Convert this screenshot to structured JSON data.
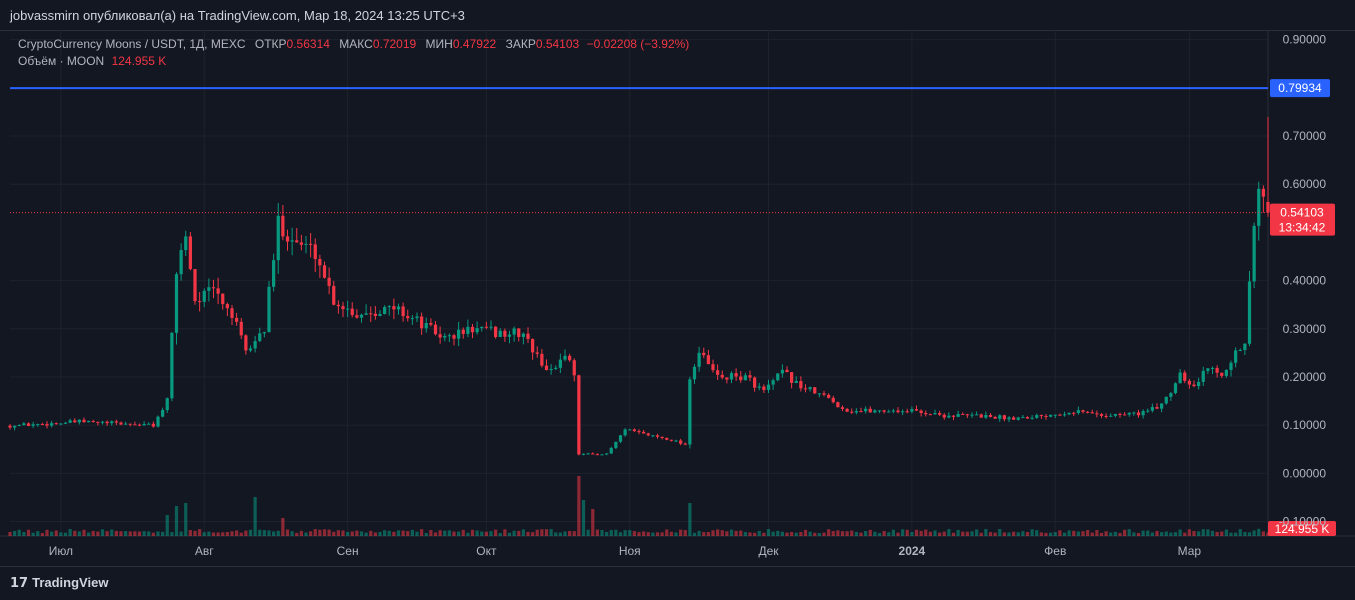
{
  "header": {
    "published": "jobvassmirn опубликовал(а) на TradingView.com, Мар 18, 2024 13:25 UTC+3"
  },
  "legend": {
    "symbol": "CryptoCurrency Moons / USDT, 1Д, MEXC",
    "open_label": "ОТКР",
    "open": "0.56314",
    "high_label": "МАКС",
    "high": "0.72019",
    "low_label": "МИН",
    "low": "0.47922",
    "close_label": "ЗАКР",
    "close": "0.54103",
    "change": "−0.02208 (−3.92%)",
    "volume_label": "Объём · MOON",
    "volume": "124.955 K"
  },
  "footer": {
    "logo_mark": "17",
    "logo_text": "TradingView"
  },
  "colors": {
    "background": "#131722",
    "up": "#089981",
    "down": "#f23645",
    "hline": "#2962ff",
    "grid": "#1e222d"
  },
  "chart_data": {
    "type": "candlestick",
    "y_ticks": [
      "0.90000",
      "0.70000",
      "0.60000",
      "0.40000",
      "0.30000",
      "0.20000",
      "0.10000",
      "0.00000",
      "-0.10000"
    ],
    "y_tick_values": [
      0.9,
      0.7,
      0.6,
      0.4,
      0.3,
      0.2,
      0.1,
      0.0,
      -0.1
    ],
    "ylim": [
      -0.13,
      0.92
    ],
    "x_labels": [
      "Июл",
      "Авг",
      "Сен",
      "Окт",
      "Ноя",
      "Дек",
      "2024",
      "Фев",
      "Мар"
    ],
    "x_label_dates": [
      "2023-07-01",
      "2023-08-01",
      "2023-09-01",
      "2023-10-01",
      "2023-11-01",
      "2023-12-01",
      "2024-01-01",
      "2024-02-01",
      "2024-03-01"
    ],
    "date_range": [
      "2023-06-20",
      "2024-03-18"
    ],
    "horizontal_line": {
      "value": 0.79934,
      "label": "0.79934"
    },
    "last_price": {
      "value": 0.54103,
      "label": "0.54103",
      "countdown": "13:34:42"
    },
    "last_volume_label": "124.955 K",
    "price_path": [
      [
        "2023-06-20",
        0.099
      ],
      [
        "2023-06-28",
        0.103
      ],
      [
        "2023-07-05",
        0.107
      ],
      [
        "2023-07-12",
        0.104
      ],
      [
        "2023-07-18",
        0.101
      ],
      [
        "2023-07-21",
        0.1
      ],
      [
        "2023-07-24",
        0.15
      ],
      [
        "2023-07-26",
        0.42
      ],
      [
        "2023-07-28",
        0.5
      ],
      [
        "2023-07-30",
        0.36
      ],
      [
        "2023-08-03",
        0.38
      ],
      [
        "2023-08-07",
        0.33
      ],
      [
        "2023-08-10",
        0.25
      ],
      [
        "2023-08-14",
        0.3
      ],
      [
        "2023-08-17",
        0.52
      ],
      [
        "2023-08-21",
        0.48
      ],
      [
        "2023-08-25",
        0.46
      ],
      [
        "2023-08-29",
        0.36
      ],
      [
        "2023-09-03",
        0.33
      ],
      [
        "2023-09-07",
        0.34
      ],
      [
        "2023-09-12",
        0.34
      ],
      [
        "2023-09-17",
        0.31
      ],
      [
        "2023-09-22",
        0.28
      ],
      [
        "2023-09-28",
        0.3
      ],
      [
        "2023-10-04",
        0.29
      ],
      [
        "2023-10-09",
        0.29
      ],
      [
        "2023-10-12",
        0.24
      ],
      [
        "2023-10-15",
        0.21
      ],
      [
        "2023-10-18",
        0.25
      ],
      [
        "2023-10-20",
        0.21
      ],
      [
        "2023-10-21",
        0.04
      ],
      [
        "2023-10-27",
        0.04
      ],
      [
        "2023-10-31",
        0.09
      ],
      [
        "2023-11-05",
        0.08
      ],
      [
        "2023-11-10",
        0.07
      ],
      [
        "2023-11-13",
        0.06
      ],
      [
        "2023-11-14",
        0.2
      ],
      [
        "2023-11-16",
        0.25
      ],
      [
        "2023-11-20",
        0.2
      ],
      [
        "2023-11-26",
        0.2
      ],
      [
        "2023-11-30",
        0.17
      ],
      [
        "2023-12-04",
        0.21
      ],
      [
        "2023-12-08",
        0.18
      ],
      [
        "2023-12-13",
        0.16
      ],
      [
        "2023-12-18",
        0.13
      ],
      [
        "2023-12-25",
        0.13
      ],
      [
        "2024-01-01",
        0.13
      ],
      [
        "2024-01-08",
        0.12
      ],
      [
        "2024-01-15",
        0.12
      ],
      [
        "2024-01-22",
        0.115
      ],
      [
        "2024-01-29",
        0.12
      ],
      [
        "2024-02-05",
        0.13
      ],
      [
        "2024-02-12",
        0.12
      ],
      [
        "2024-02-19",
        0.125
      ],
      [
        "2024-02-23",
        0.135
      ],
      [
        "2024-02-26",
        0.17
      ],
      [
        "2024-02-28",
        0.21
      ],
      [
        "2024-03-02",
        0.18
      ],
      [
        "2024-03-05",
        0.22
      ],
      [
        "2024-03-08",
        0.21
      ],
      [
        "2024-03-11",
        0.25
      ],
      [
        "2024-03-13",
        0.26
      ],
      [
        "2024-03-14",
        0.4
      ],
      [
        "2024-03-15",
        0.51
      ],
      [
        "2024-03-16",
        0.57
      ],
      [
        "2024-03-17",
        0.56314
      ],
      [
        "2024-03-18",
        0.54103
      ]
    ],
    "volume_spikes": [
      [
        "2023-07-24",
        0.35
      ],
      [
        "2023-07-26",
        0.5
      ],
      [
        "2023-07-28",
        0.55
      ],
      [
        "2023-08-12",
        0.65
      ],
      [
        "2023-08-18",
        0.3
      ],
      [
        "2023-10-21",
        1.0
      ],
      [
        "2023-10-22",
        0.6
      ],
      [
        "2023-10-24",
        0.45
      ],
      [
        "2023-11-14",
        0.55
      ],
      [
        "2024-03-16",
        0.12
      ]
    ]
  }
}
